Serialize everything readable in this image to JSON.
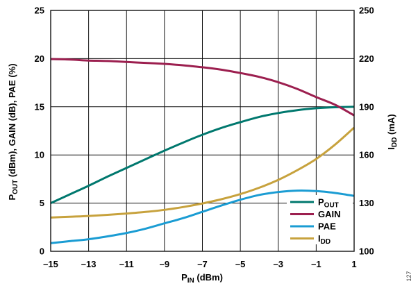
{
  "figure_number": "127",
  "chart_data": {
    "type": "line",
    "xlabel": "PIN (dBm)",
    "xlabel_sub": "IN",
    "ylabel": "POUT (dBm), GAIN (dB), PAE (%)",
    "ylabel_sub": "OUT",
    "y2label": "IDD (mA)",
    "y2label_sub": "DD",
    "xlim": [
      -15,
      1
    ],
    "ylim": [
      0,
      25
    ],
    "y2lim": [
      100,
      250
    ],
    "xticks": [
      -15,
      -13,
      -11,
      -9,
      -7,
      -5,
      -3,
      -1,
      1
    ],
    "xtick_labels": [
      "–15",
      "–13",
      "–11",
      "–9",
      "–7",
      "–5",
      "–3",
      "–1",
      "1"
    ],
    "yticks": [
      0,
      5,
      10,
      15,
      20,
      25
    ],
    "y2ticks": [
      100,
      130,
      160,
      190,
      220,
      250
    ],
    "grid": true,
    "legend": "bottom-right",
    "x": [
      -15,
      -14,
      -13,
      -12,
      -11,
      -10,
      -9,
      -8,
      -7,
      -6,
      -5,
      -4,
      -3,
      -2,
      -1,
      0,
      1
    ],
    "series": [
      {
        "name": "POUT",
        "name_sub": "OUT",
        "axis": "left",
        "color": "#00786e",
        "values": [
          5.0,
          5.9,
          6.8,
          7.75,
          8.65,
          9.55,
          10.45,
          11.3,
          12.1,
          12.8,
          13.4,
          13.95,
          14.35,
          14.65,
          14.85,
          14.95,
          15.0
        ]
      },
      {
        "name": "GAIN",
        "axis": "left",
        "color": "#9c1f4f",
        "values": [
          19.95,
          19.9,
          19.8,
          19.75,
          19.65,
          19.55,
          19.45,
          19.3,
          19.1,
          18.85,
          18.5,
          18.1,
          17.55,
          16.85,
          16.0,
          15.2,
          14.1
        ]
      },
      {
        "name": "PAE",
        "axis": "left",
        "color": "#1a9cd3",
        "values": [
          0.85,
          1.05,
          1.25,
          1.55,
          1.9,
          2.35,
          2.9,
          3.45,
          4.1,
          4.75,
          5.35,
          5.85,
          6.15,
          6.3,
          6.25,
          6.05,
          5.75
        ]
      },
      {
        "name": "IDD",
        "name_sub": "DD",
        "axis": "right",
        "color": "#c7a23d",
        "values": [
          121.0,
          121.5,
          122.0,
          122.7,
          123.5,
          124.5,
          125.8,
          127.6,
          129.8,
          132.4,
          135.6,
          139.6,
          144.5,
          150.5,
          157.5,
          166.5,
          177.0
        ]
      }
    ]
  }
}
